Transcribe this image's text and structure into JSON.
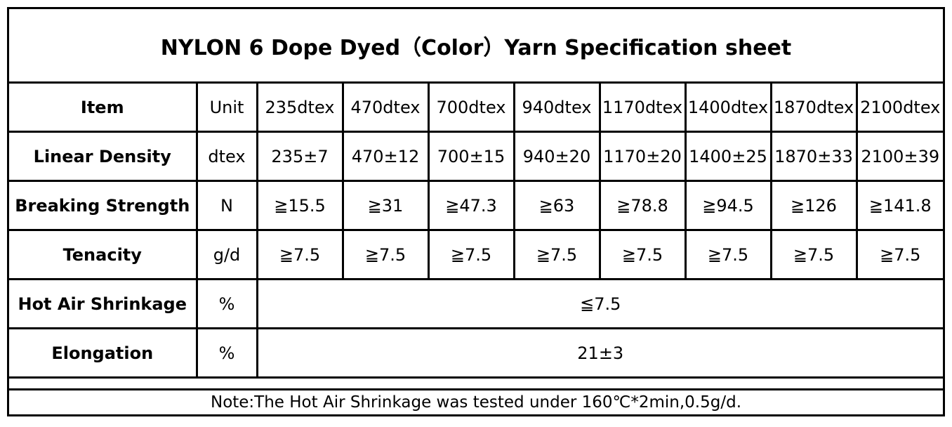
{
  "title": "NYLON 6 Dope Dyed（Color）Yarn Specification sheet",
  "header": {
    "item": "Item",
    "unit": "Unit",
    "columns": [
      "235dtex",
      "470dtex",
      "700dtex",
      "940dtex",
      "1170dtex",
      "1400dtex",
      "1870dtex",
      "2100dtex"
    ]
  },
  "rows": [
    {
      "item": "Linear Density",
      "unit": "dtex",
      "values": [
        "235±7",
        "470±12",
        "700±15",
        "940±20",
        "1170±20",
        "1400±25",
        "1870±33",
        "2100±39"
      ]
    },
    {
      "item": "Breaking Strength",
      "unit": "N",
      "values": [
        "≧15.5",
        "≧31",
        "≧47.3",
        "≧63",
        "≧78.8",
        "≧94.5",
        "≧126",
        "≧141.8"
      ]
    },
    {
      "item": "Tenacity",
      "unit": "g/d",
      "values": [
        "≧7.5",
        "≧7.5",
        "≧7.5",
        "≧7.5",
        "≧7.5",
        "≧7.5",
        "≧7.5",
        "≧7.5"
      ]
    },
    {
      "item": "Hot Air Shrinkage",
      "unit": "%",
      "merged_value": "≦7.5"
    },
    {
      "item": "Elongation",
      "unit": "%",
      "merged_value": "21±3"
    }
  ],
  "note": "Note:The Hot Air Shrinkage was tested under 160℃*2min,0.5g/d."
}
